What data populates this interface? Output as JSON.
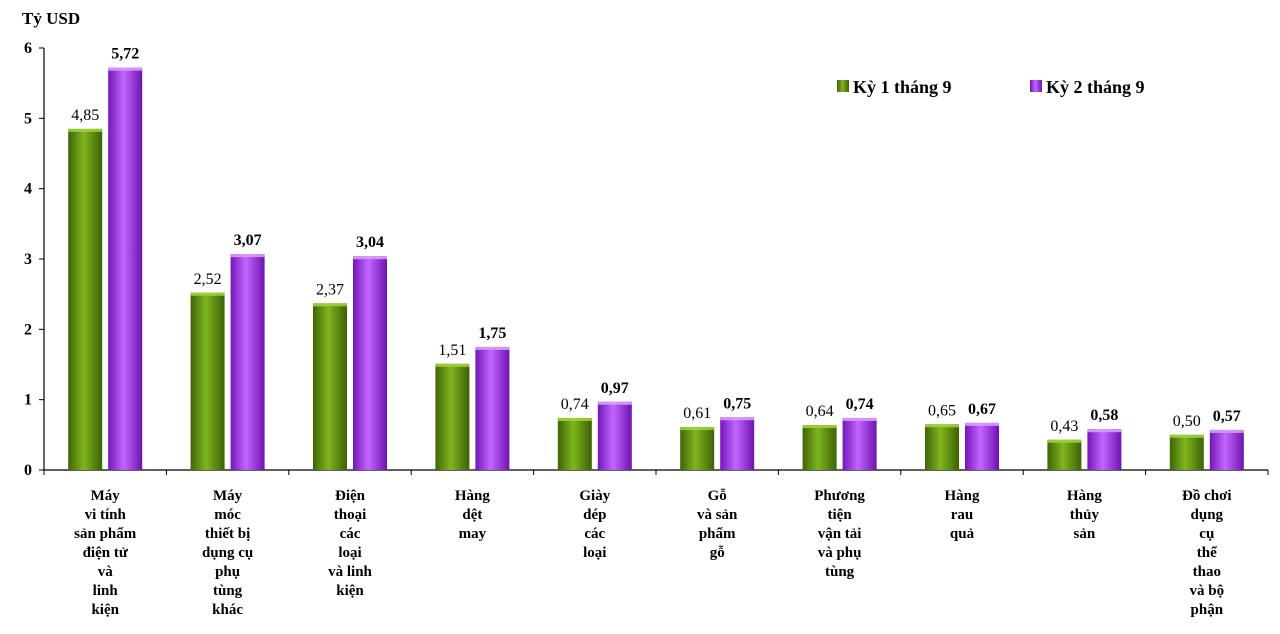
{
  "chart_data": {
    "type": "bar",
    "ylabel": "Tỷ USD",
    "ylim": [
      0,
      6
    ],
    "yticks": [
      "0",
      "1",
      "2",
      "3",
      "4",
      "5",
      "6"
    ],
    "grid": false,
    "legend_position": "top-right",
    "categories": [
      [
        "Máy",
        "vi tính",
        "sản phẩm",
        "điện tử",
        "và",
        "linh",
        "kiện"
      ],
      [
        "Máy",
        "móc",
        "thiết bị",
        "dụng cụ",
        "phụ",
        "tùng",
        "khác"
      ],
      [
        "Điện",
        "thoại",
        "các",
        "loại",
        "và linh",
        "kiện"
      ],
      [
        "Hàng",
        "dệt",
        "may"
      ],
      [
        "Giày",
        "dép",
        "các",
        "loại"
      ],
      [
        "Gỗ",
        "và sản",
        "phẩm",
        "gỗ"
      ],
      [
        "Phương",
        "tiện",
        "vận tải",
        "và phụ",
        "tùng"
      ],
      [
        "Hàng",
        "rau",
        "quả"
      ],
      [
        "Hàng",
        "thủy",
        "sản"
      ],
      [
        "Đồ chơi",
        "dụng",
        "cụ",
        "thể",
        "thao",
        "và bộ",
        "phận"
      ]
    ],
    "series": [
      {
        "name": "Kỳ 1 tháng 9",
        "color": "#5b8a0f",
        "values": [
          4.85,
          2.52,
          2.37,
          1.51,
          0.74,
          0.61,
          0.64,
          0.65,
          0.43,
          0.5
        ],
        "labels": [
          "4,85",
          "2,52",
          "2,37",
          "1,51",
          "0,74",
          "0,61",
          "0,64",
          "0,65",
          "0,43",
          "0,50"
        ]
      },
      {
        "name": "Kỳ 2 tháng 9",
        "color": "#a02fe6",
        "values": [
          5.72,
          3.07,
          3.04,
          1.75,
          0.97,
          0.75,
          0.74,
          0.67,
          0.58,
          0.57
        ],
        "labels": [
          "5,72",
          "3,07",
          "3,04",
          "1,75",
          "0,97",
          "0,75",
          "0,74",
          "0,67",
          "0,58",
          "0,57"
        ]
      }
    ]
  }
}
